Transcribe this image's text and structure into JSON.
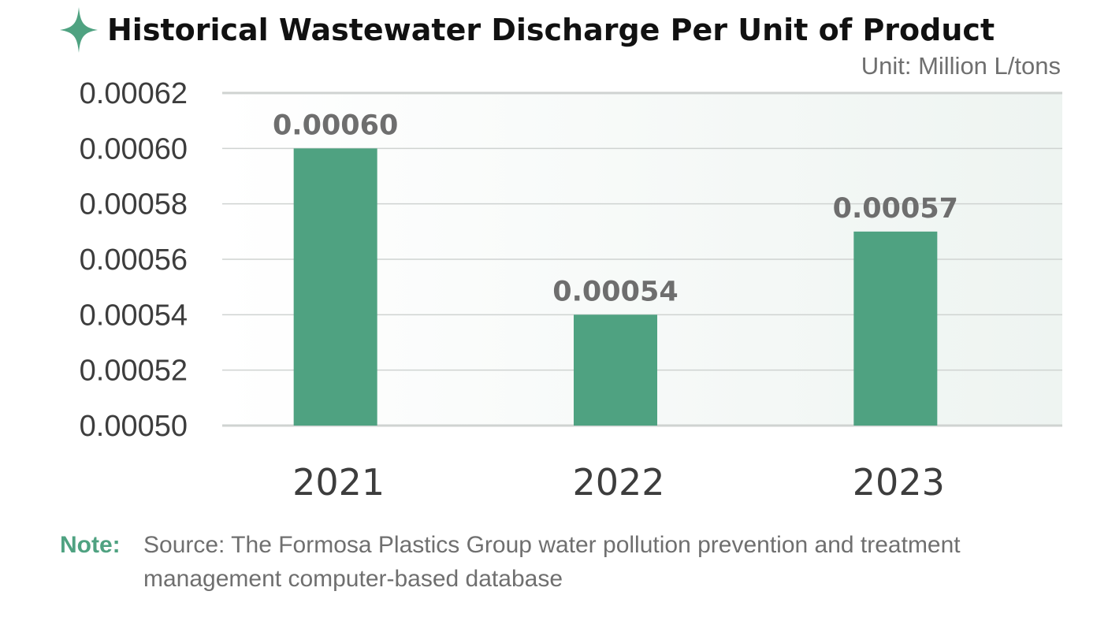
{
  "header": {
    "title": "Historical Wastewater Discharge Per Unit of Product",
    "icon": "sparkle-icon"
  },
  "unit_label": "Unit: Million L/tons",
  "note": {
    "label": "Note:",
    "text": "Source: The Formosa Plastics Group water pollution prevention and treatment management computer-based database"
  },
  "colors": {
    "bar": "#4fa281",
    "accent": "#4fa281",
    "bar_label": "#6e6e6e",
    "axis_text": "#3d3d3d",
    "grid": "#cfd3d1"
  },
  "chart_data": {
    "type": "bar",
    "categories": [
      "2021",
      "2022",
      "2023"
    ],
    "values": [
      0.0006,
      0.00054,
      0.00057
    ],
    "value_labels": [
      "0.00060",
      "0.00054",
      "0.00057"
    ],
    "ylim": [
      0.0005,
      0.00062
    ],
    "yticks": [
      "0.00050",
      "0.00052",
      "0.00054",
      "0.00056",
      "0.00058",
      "0.00060",
      "0.00062"
    ],
    "ytick_values": [
      0.0005,
      0.00052,
      0.00054,
      0.00056,
      0.00058,
      0.0006,
      0.00062
    ],
    "grid": true,
    "xlabel": "",
    "ylabel": ""
  }
}
